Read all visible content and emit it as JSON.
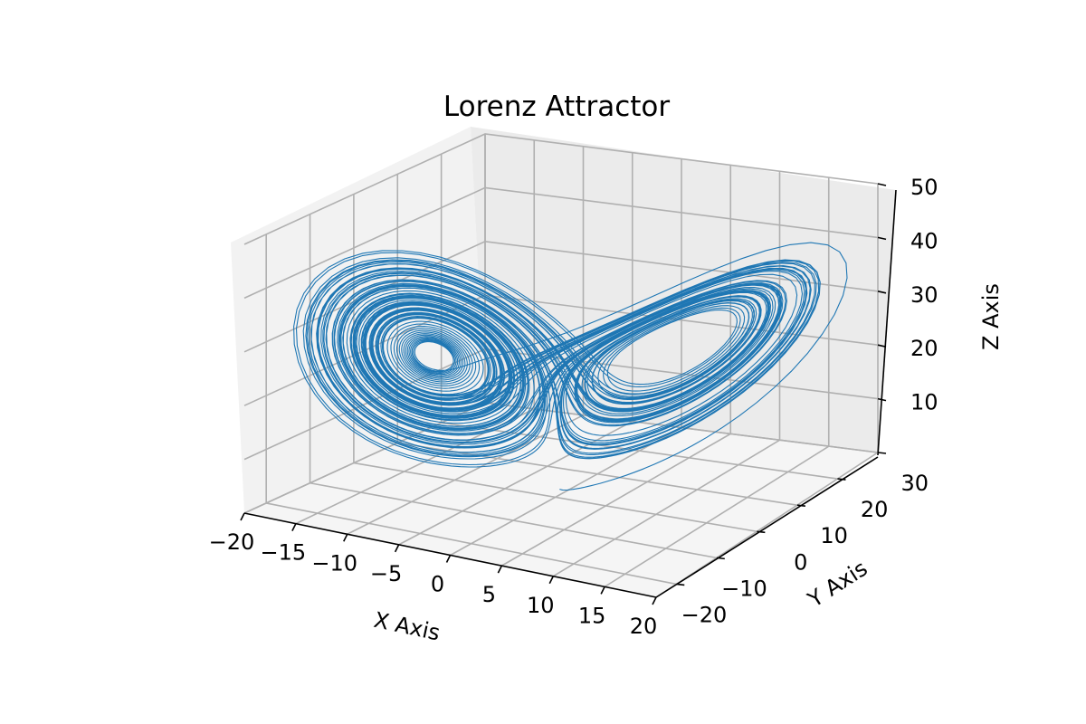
{
  "chart_data": {
    "type": "line",
    "projection": "3d",
    "title": "Lorenz Attractor",
    "xlabel": "X Axis",
    "ylabel": "Y Axis",
    "zlabel": "Z Axis",
    "xlim": [
      -20,
      20
    ],
    "ylim": [
      -25,
      30
    ],
    "zlim": [
      0,
      50
    ],
    "xticks": [
      -20,
      -15,
      -10,
      -5,
      0,
      5,
      10,
      15,
      20
    ],
    "yticks": [
      -20,
      -10,
      0,
      10,
      20,
      30
    ],
    "zticks": [
      10,
      20,
      30,
      40,
      50
    ],
    "xtick_labels": [
      "−20",
      "−15",
      "−10",
      "−5",
      "0",
      "5",
      "10",
      "15",
      "20"
    ],
    "ytick_labels": [
      "−20",
      "−10",
      "0",
      "10",
      "20",
      "30"
    ],
    "ztick_labels": [
      "10",
      "20",
      "30",
      "40",
      "50"
    ],
    "grid": true,
    "series": [
      {
        "color": "#1f77b4",
        "system": "lorenz",
        "sigma": 10,
        "rho": 28,
        "beta": 2.6667,
        "initial": [
          0,
          1,
          1.05
        ],
        "dt": 0.01,
        "steps": 10000
      }
    ]
  }
}
